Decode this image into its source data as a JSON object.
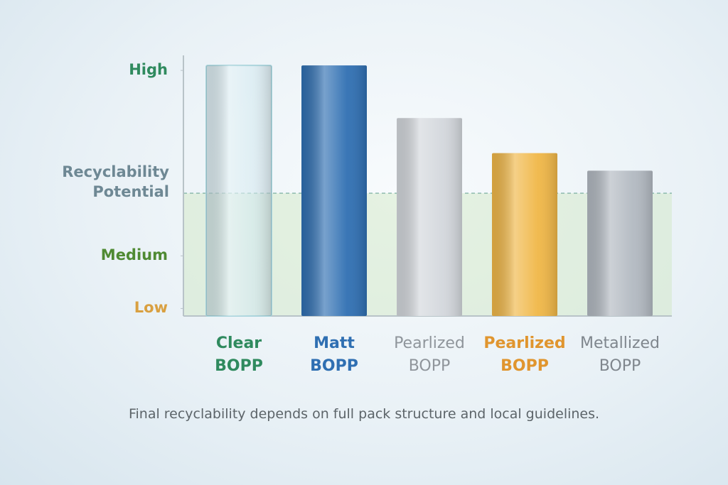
{
  "chart_data": {
    "type": "bar",
    "y_label": "Recyclability Potential",
    "categories": [
      "Clear BOPP",
      "Matt BOPP",
      "Pearlized BOPP",
      "Pearlized BOPP",
      "Metallized BOPP"
    ],
    "values": [
      100,
      100,
      79,
      65,
      58
    ],
    "colors": [
      "#cfe7ee",
      "#2f6fb2",
      "#d3d7dc",
      "#f0b747",
      "#b2b9c1"
    ],
    "label_colors": [
      "#2f8a5e",
      "#2f6fb2",
      "#8f959b",
      "#e0952e",
      "#7f868d"
    ],
    "ylim": [
      0,
      104
    ],
    "yticks": [
      {
        "value": 98,
        "label": "High"
      },
      {
        "value": 24,
        "label": "Medium"
      },
      {
        "value": 3,
        "label": "Low"
      }
    ],
    "ytick_colors": [
      "#2f8a5e",
      "#4f8a33",
      "#d9a040"
    ],
    "threshold": 49,
    "note": "Final recyclability depends on full pack structure and local guidelines."
  }
}
